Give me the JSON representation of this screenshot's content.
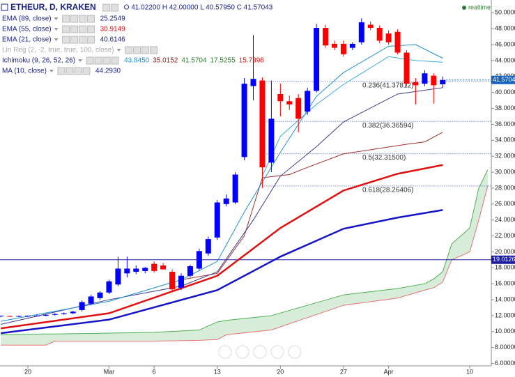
{
  "chart_data": {
    "type": "candlestick",
    "title": "ETHEUR, D, KRAKEN",
    "ohlc_text": "O 41.02200 H 42.00000 L 40.57950 C 41.57043",
    "realtime": "realtime",
    "categories": [
      null,
      null,
      null,
      "20",
      null,
      null,
      null,
      null,
      null,
      null,
      null,
      null,
      "Mar",
      null,
      null,
      null,
      null,
      "6",
      null,
      null,
      null,
      null,
      null,
      null,
      "13",
      null,
      null,
      null,
      null,
      null,
      null,
      "20",
      null,
      null,
      null,
      null,
      null,
      null,
      "27",
      null,
      null,
      null,
      null,
      "Apr",
      null,
      null,
      null,
      null,
      null,
      null,
      null,
      null,
      "10",
      null,
      null
    ],
    "open": [
      11.9,
      11.95,
      11.9,
      11.9,
      12.0,
      12.0,
      12.1,
      12.2,
      12.3,
      12.7,
      13.5,
      14.2,
      14.9,
      15.9,
      17.3,
      17.5,
      17.6,
      18.5,
      18.3,
      17.5,
      15.5,
      17.0,
      17.9,
      19.8,
      21.8,
      26.0,
      26.2,
      31.9,
      40.8,
      41.5,
      31.2,
      39.8,
      38.9,
      39.3,
      37.6,
      40.2,
      48.1,
      46.1,
      46.1,
      45.6,
      46.3,
      48.5,
      48.1,
      47.4,
      47.6,
      45.0,
      41.3,
      41.1,
      42.1,
      41.022,
      null,
      null,
      null,
      null,
      null
    ],
    "high": [
      12.0,
      12.0,
      12.0,
      12.0,
      12.1,
      12.2,
      12.3,
      12.4,
      12.6,
      13.9,
      14.6,
      15.1,
      16.5,
      19.4,
      19.4,
      18.3,
      18.1,
      18.8,
      18.6,
      17.8,
      17.3,
      18.4,
      20.4,
      21.9,
      26.5,
      27.2,
      30.0,
      41.8,
      47.2,
      41.9,
      41.5,
      41.1,
      39.6,
      39.8,
      40.6,
      48.6,
      48.5,
      46.5,
      46.5,
      46.3,
      49.3,
      48.9,
      48.4,
      47.8,
      47.9,
      45.3,
      41.8,
      42.8,
      42.4,
      42.0,
      null,
      null,
      null,
      null,
      null
    ],
    "low": [
      11.8,
      11.85,
      11.8,
      11.8,
      11.9,
      11.9,
      12.0,
      12.1,
      12.2,
      12.5,
      13.3,
      14.0,
      14.7,
      15.7,
      16.8,
      17.2,
      17.3,
      17.4,
      17.8,
      15.1,
      15.2,
      16.8,
      17.7,
      19.5,
      21.5,
      25.7,
      26.0,
      31.5,
      39.0,
      28.0,
      30.0,
      37.0,
      37.8,
      35.0,
      37.2,
      40.0,
      45.6,
      45.3,
      44.5,
      45.3,
      46.0,
      47.8,
      46.2,
      46.0,
      44.8,
      40.8,
      38.5,
      40.8,
      38.6,
      40.5795,
      null,
      null,
      null,
      null,
      null
    ],
    "close": [
      12.0,
      11.9,
      11.95,
      12.0,
      12.0,
      12.1,
      12.2,
      12.3,
      12.5,
      13.7,
      14.4,
      14.9,
      16.3,
      17.9,
      17.9,
      17.9,
      18.0,
      17.6,
      17.8,
      15.3,
      17.0,
      18.2,
      20.1,
      21.6,
      26.2,
      26.7,
      29.7,
      41.1,
      41.7,
      30.6,
      36.7,
      38.9,
      38.5,
      36.7,
      40.2,
      48.1,
      45.9,
      45.6,
      44.8,
      46.1,
      48.8,
      48.1,
      46.5,
      46.3,
      45.0,
      41.1,
      40.9,
      42.4,
      40.9,
      41.57043,
      null,
      null,
      null,
      null,
      null
    ],
    "up_color": "#0000ff",
    "down_color": "#ff0000",
    "ylim": [
      5.7,
      51.6
    ],
    "yticks": [
      {
        "value": 6,
        "label": "6.00000"
      },
      {
        "value": 8,
        "label": "8.00000"
      },
      {
        "value": 10,
        "label": "10.00000"
      },
      {
        "value": 12,
        "label": "12.00000"
      },
      {
        "value": 14,
        "label": "14.00000"
      },
      {
        "value": 16,
        "label": "16.00000"
      },
      {
        "value": 18,
        "label": "18.00000"
      },
      {
        "value": 20,
        "label": "20.00000"
      },
      {
        "value": 22,
        "label": "22.00000"
      },
      {
        "value": 24,
        "label": "24.00000"
      },
      {
        "value": 26,
        "label": "26.00000"
      },
      {
        "value": 28,
        "label": "28.00000"
      },
      {
        "value": 30,
        "label": "30.00000"
      },
      {
        "value": 32,
        "label": "32.00000"
      },
      {
        "value": 34,
        "label": "34.00000"
      },
      {
        "value": 36,
        "label": "36.00000"
      },
      {
        "value": 38,
        "label": "38.00000"
      },
      {
        "value": 40,
        "label": "40.00000"
      },
      {
        "value": 42,
        "label": "42.00000"
      },
      {
        "value": 44,
        "label": "44.00000"
      },
      {
        "value": 46,
        "label": "46.00000"
      },
      {
        "value": 48,
        "label": "48.00000"
      },
      {
        "value": 50,
        "label": "50.00000"
      }
    ],
    "lines": [
      {
        "name": "EMA (89, close)",
        "color": "#1414c8",
        "width": 2.5,
        "x": [
          0,
          12,
          24,
          31,
          38,
          44,
          49
        ],
        "values": [
          9.8,
          11.5,
          15.2,
          19.4,
          22.9,
          24.3,
          25.25
        ]
      },
      {
        "name": "EMA (55, close)",
        "color": "#e01010",
        "width": 2.5,
        "x": [
          0,
          12,
          24,
          31,
          38,
          44,
          49
        ],
        "values": [
          10.4,
          12.3,
          17.0,
          23.0,
          27.7,
          29.8,
          30.9
        ]
      },
      {
        "name": "EMA (21, close)",
        "color": "#3c3c8c",
        "width": 1,
        "x": [
          0,
          12,
          20,
          24,
          28,
          31,
          35,
          38,
          44,
          49
        ],
        "values": [
          10.9,
          14.0,
          15.7,
          17.5,
          24.0,
          29.5,
          33.2,
          36.3,
          39.8,
          40.6
        ]
      },
      {
        "name": "MA (10, close)",
        "color": "#1e90d0",
        "width": 1,
        "x": [
          0,
          12,
          20,
          24,
          27,
          31,
          35,
          38,
          43,
          46,
          49
        ],
        "values": [
          11.3,
          13.8,
          16.5,
          18.8,
          25.0,
          32.5,
          39.5,
          42.5,
          45.8,
          46.0,
          44.3
        ]
      }
    ],
    "ichimoku_lines": [
      {
        "color": "#a03030",
        "x": [
          20,
          24,
          27,
          29,
          32,
          34,
          38,
          45,
          47,
          49
        ],
        "values": [
          16.5,
          17.3,
          22.0,
          29.3,
          29.7,
          30.6,
          32.3,
          33.5,
          33.8,
          35.0
        ]
      },
      {
        "color": "#40a8e0",
        "x": [
          29,
          31,
          35,
          38,
          43,
          46,
          49
        ],
        "values": [
          29.5,
          34.5,
          38.5,
          41.0,
          44.5,
          44.0,
          43.8
        ]
      }
    ],
    "cloud": {
      "x": [
        0,
        5,
        6,
        17,
        22,
        24,
        25,
        30,
        38,
        44,
        47,
        48,
        49,
        50,
        52,
        53,
        54
      ],
      "span_a": [
        9.6,
        9.7,
        9.7,
        9.9,
        10.2,
        11.2,
        11.4,
        12.0,
        14.6,
        15.4,
        16.0,
        16.6,
        17.5,
        21.0,
        23.0,
        28.0,
        30.3
      ],
      "span_b": [
        8.3,
        8.3,
        8.8,
        8.8,
        8.9,
        9.0,
        9.6,
        10.2,
        13.3,
        14.2,
        15.2,
        15.5,
        16.2,
        19.0,
        20.0,
        24.0,
        28.3
      ],
      "color_a": "#4caf50",
      "color_b": "#e57373",
      "fill": "#c8e6c9"
    },
    "fib_start": 29,
    "fib_levels": [
      {
        "value": 41.37812,
        "label": "0.236(41.37812)"
      },
      {
        "value": 36.36594,
        "label": "0.382(36.36594)"
      },
      {
        "value": 32.315,
        "label": "0.5(32.31500)"
      },
      {
        "value": 28.26406,
        "label": "0.618(28.26406)"
      }
    ],
    "hline": {
      "value": 19.0126,
      "label": "19.0126",
      "color": "#1a1aa0"
    },
    "last_price": {
      "value": 41.5704,
      "label": "41.5704",
      "color": "#1565c0"
    },
    "indicators": [
      {
        "name": "EMA (89, close)",
        "color": "#1a237e",
        "values": [
          {
            "text": "25.2549",
            "color": "#1a237e"
          }
        ]
      },
      {
        "name": "EMA (55, close)",
        "color": "#1a237e",
        "values": [
          {
            "text": "30.9149",
            "color": "#e01010"
          }
        ]
      },
      {
        "name": "EMA (21, close)",
        "color": "#1a237e",
        "values": [
          {
            "text": "40.6146",
            "color": "#1a237e"
          }
        ]
      },
      {
        "name": "Lin Reg (2, -2, true, true, 100, close)",
        "color": "#aaaaaa",
        "values": []
      },
      {
        "name": "Ichimoku (9, 26, 52, 26)",
        "color": "#1a237e",
        "values": [
          {
            "text": "43.8450",
            "color": "#1e90d0"
          },
          {
            "text": "35.0152",
            "color": "#8b1a1a"
          },
          {
            "text": "41.5704",
            "color": "#2e7d32"
          },
          {
            "text": "17.5255",
            "color": "#2e7d32"
          },
          {
            "text": "15.7398",
            "color": "#e01010"
          }
        ]
      },
      {
        "name": "MA (10, close)",
        "color": "#1a237e",
        "values": [
          {
            "text": "44.2930",
            "color": "#1a237e"
          }
        ]
      }
    ]
  }
}
